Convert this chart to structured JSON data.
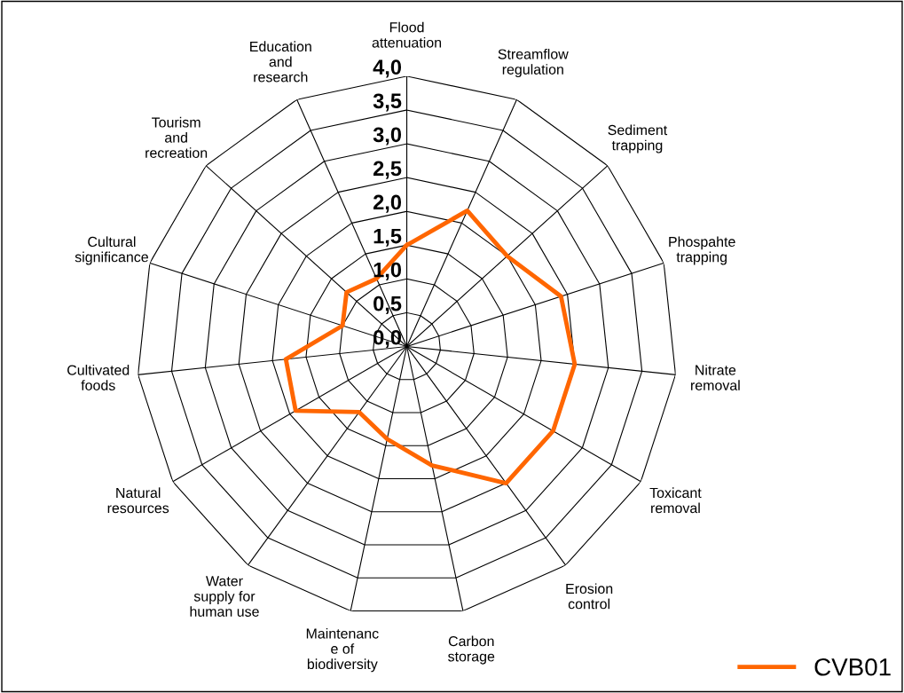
{
  "chart_data": {
    "type": "radar",
    "categories": [
      "Flood\nattenuation",
      "Streamflow\nregulation",
      "Sediment\ntrapping",
      "Phospahte\ntrapping",
      "Nitrate\nremoval",
      "Toxicant\nremoval",
      "Erosion\ncontrol",
      "Carbon\nstorage",
      "Maintenanc\ne of\nbiodiversity",
      "Water\nsupply for\nhuman use",
      "Natural\nresources",
      "Cultivated\nfoods",
      "Cultural\nsignificance",
      "Tourism\nand\nrecreation",
      "Education\nand\nresearch"
    ],
    "series": [
      {
        "name": "CVB01",
        "color": "#ff6600",
        "values": [
          1.5,
          2.2,
          2.0,
          2.4,
          2.5,
          2.5,
          2.5,
          1.8,
          1.4,
          1.2,
          1.9,
          1.8,
          1.0,
          1.2,
          1.1
        ]
      }
    ],
    "ylim": [
      0,
      4
    ],
    "yticks": [
      {
        "value": 0,
        "label": "0,0"
      },
      {
        "value": 0.5,
        "label": "0,5"
      },
      {
        "value": 1,
        "label": "1,0"
      },
      {
        "value": 1.5,
        "label": "1,5"
      },
      {
        "value": 2,
        "label": "2,0"
      },
      {
        "value": 2.5,
        "label": "2,5"
      },
      {
        "value": 3,
        "label": "3,0"
      },
      {
        "value": 3.5,
        "label": "3,5"
      },
      {
        "value": 4,
        "label": "4,0"
      }
    ],
    "grid": true,
    "legend": "bottom right",
    "marker": "none",
    "line_style": "solid"
  }
}
